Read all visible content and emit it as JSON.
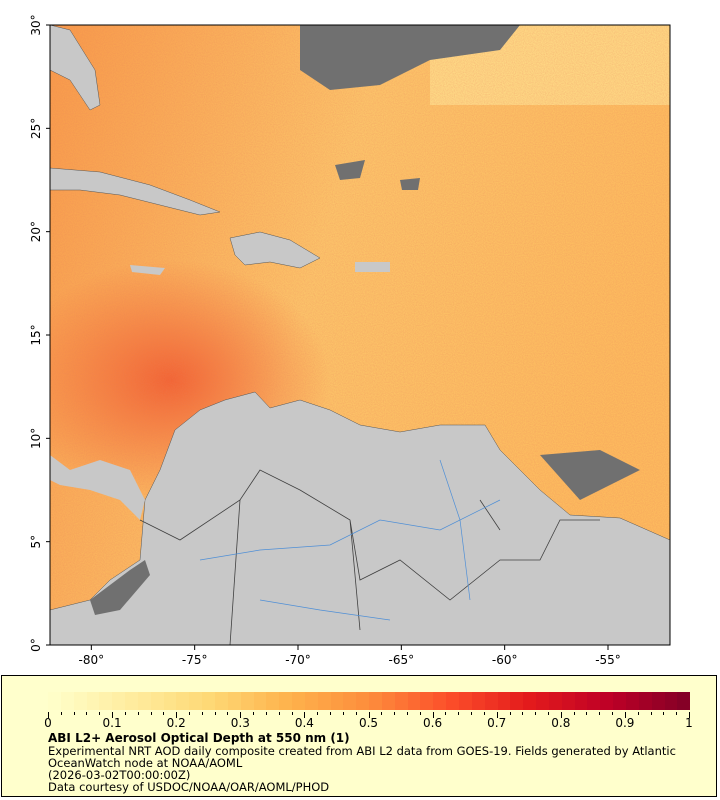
{
  "map": {
    "lat_labels": [
      "0°",
      "5°",
      "10°",
      "15°",
      "20°",
      "25°",
      "30°"
    ],
    "lon_labels": [
      "-80°",
      "-75°",
      "-70°",
      "-65°",
      "-60°",
      "-55°"
    ],
    "extent": {
      "lon": [
        -82,
        -52
      ],
      "lat": [
        0,
        30
      ]
    },
    "colors": {
      "land": "#c8c8c8",
      "no_data": "#707070",
      "border": "#404040",
      "river": "#4f8fd6"
    }
  },
  "colorbar": {
    "ticks": [
      "0",
      "0.1",
      "0.2",
      "0.3",
      "0.4",
      "0.5",
      "0.6",
      "0.7",
      "0.8",
      "0.9",
      "1"
    ],
    "range": [
      0,
      1
    ],
    "colormap": [
      "#ffffcc",
      "#ffeda0",
      "#fed976",
      "#feb24c",
      "#fd8d3c",
      "#fc4e2a",
      "#e31a1c",
      "#bd0026",
      "#800026"
    ]
  },
  "legend": {
    "title": "ABI L2+ Aerosol Optical Depth at 550 nm (1)",
    "line1": "Experimental NRT AOD daily composite created from ABI L2 data from GOES-19. Fields generated by Atlantic",
    "line2": "OceanWatch node at NOAA/AOML",
    "line3": "(2026-03-02T00:00:00Z)",
    "line4": "Data courtesy of USDOC/NOAA/OAR/AOML/PHOD"
  }
}
